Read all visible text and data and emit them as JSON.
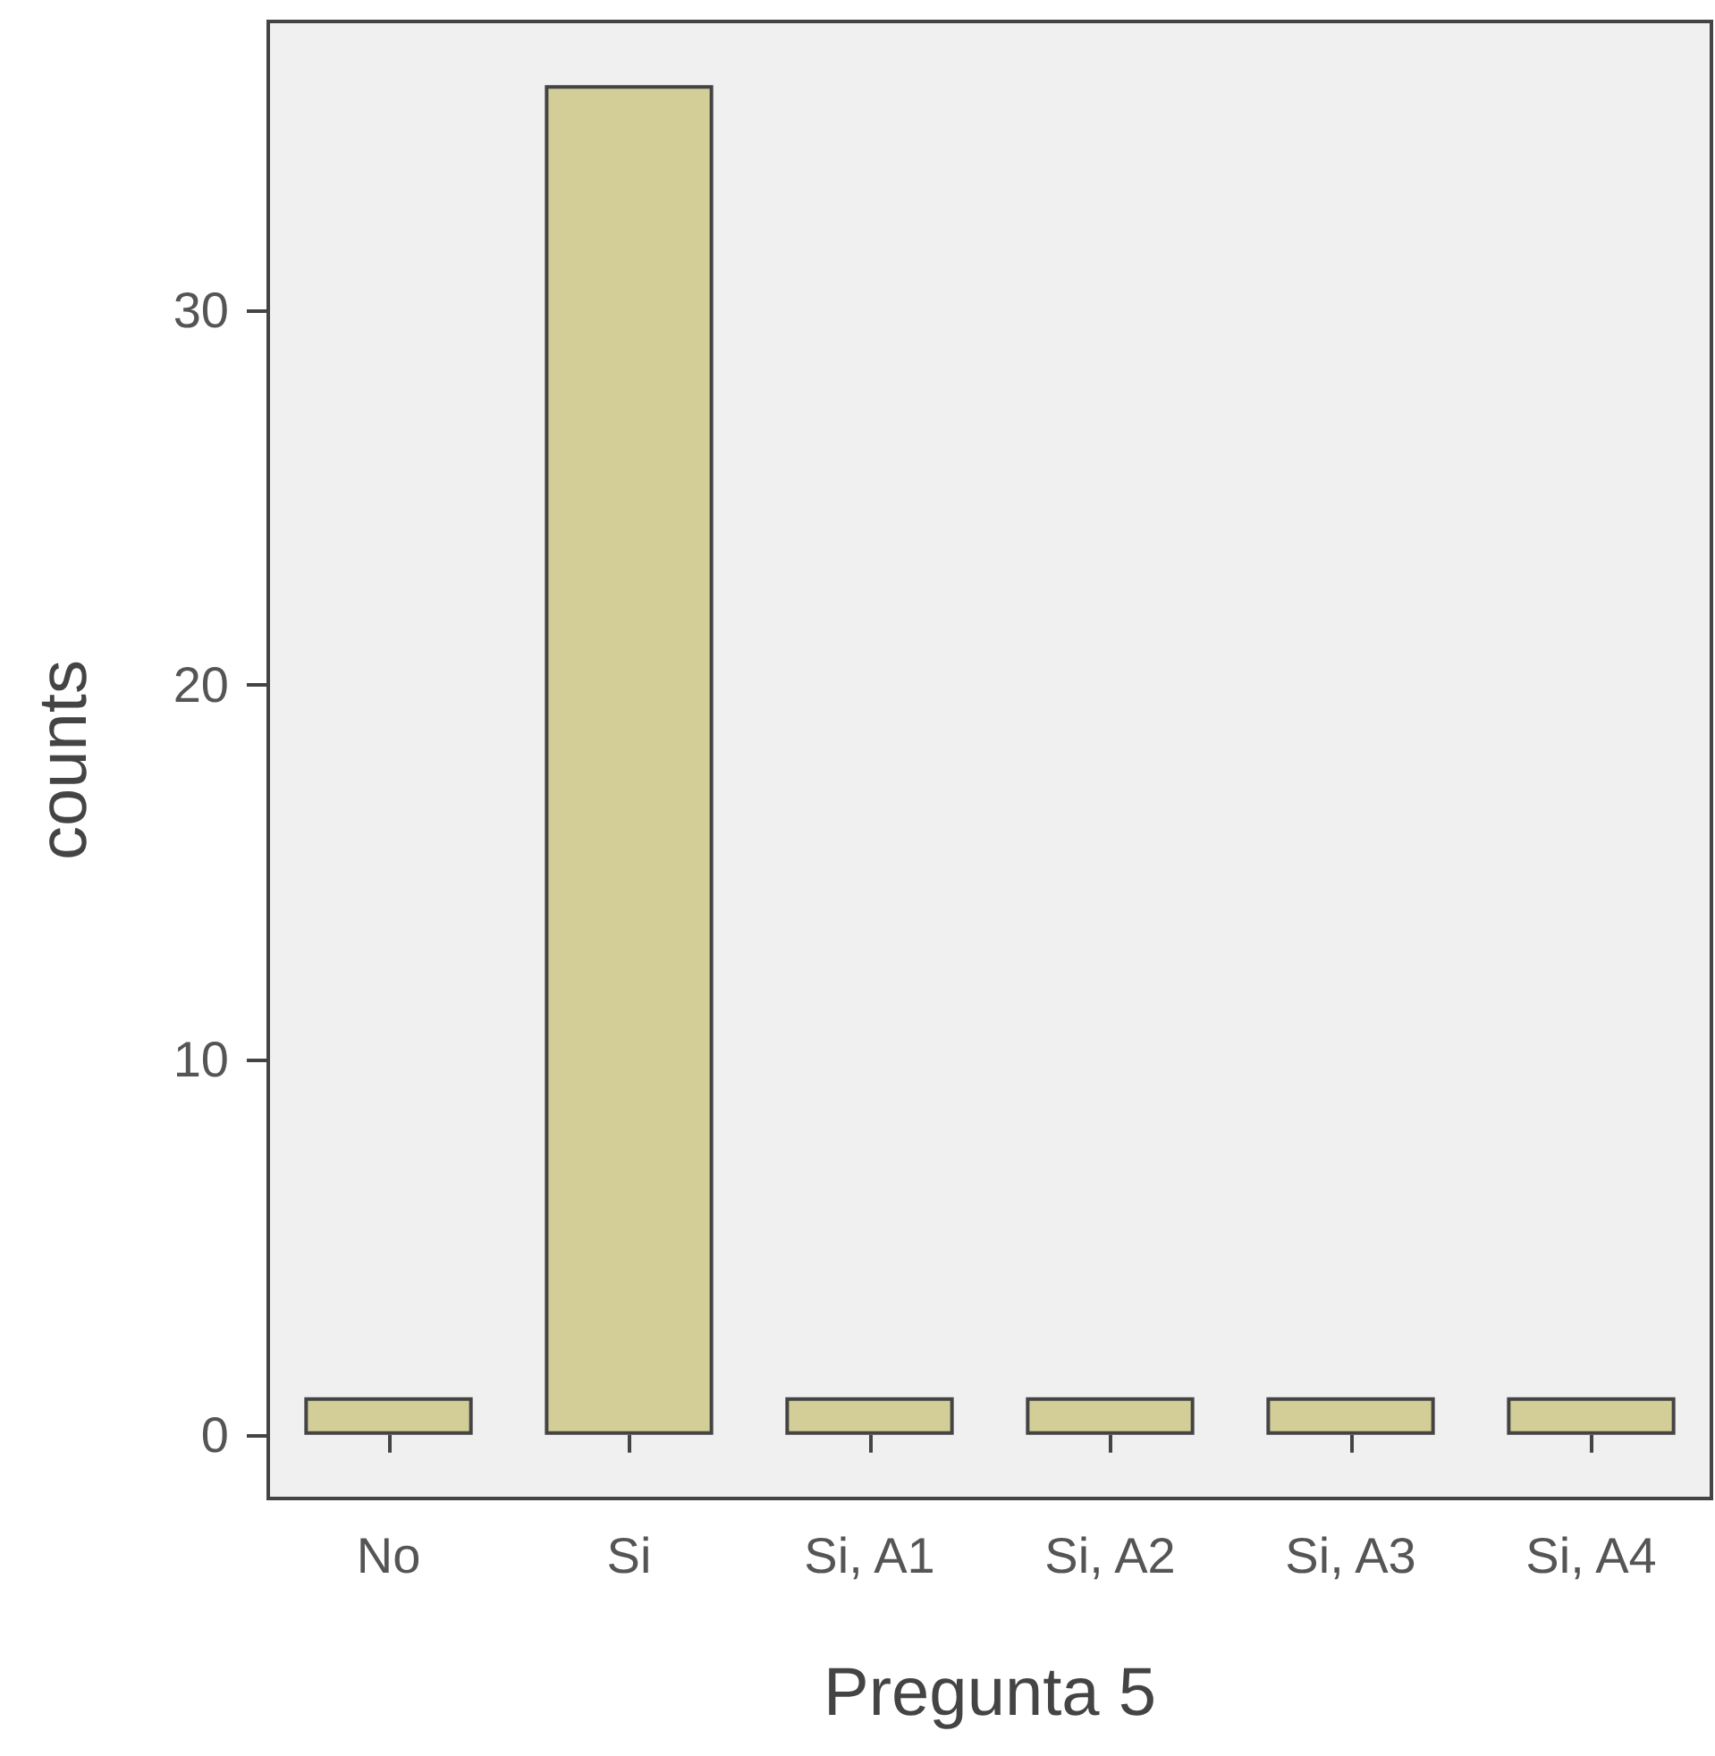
{
  "chart_data": {
    "type": "bar",
    "xlabel": "Pregunta 5",
    "ylabel": "counts",
    "categories": [
      "No",
      "Si",
      "Si, A1",
      "Si, A2",
      "Si, A3",
      "Si, A4"
    ],
    "values": [
      1,
      36,
      1,
      1,
      1,
      1
    ],
    "color": "#d3ce97",
    "ylim": [
      -1.7,
      37.7
    ],
    "yticks": [
      0,
      10,
      20,
      30
    ],
    "grid": false
  }
}
